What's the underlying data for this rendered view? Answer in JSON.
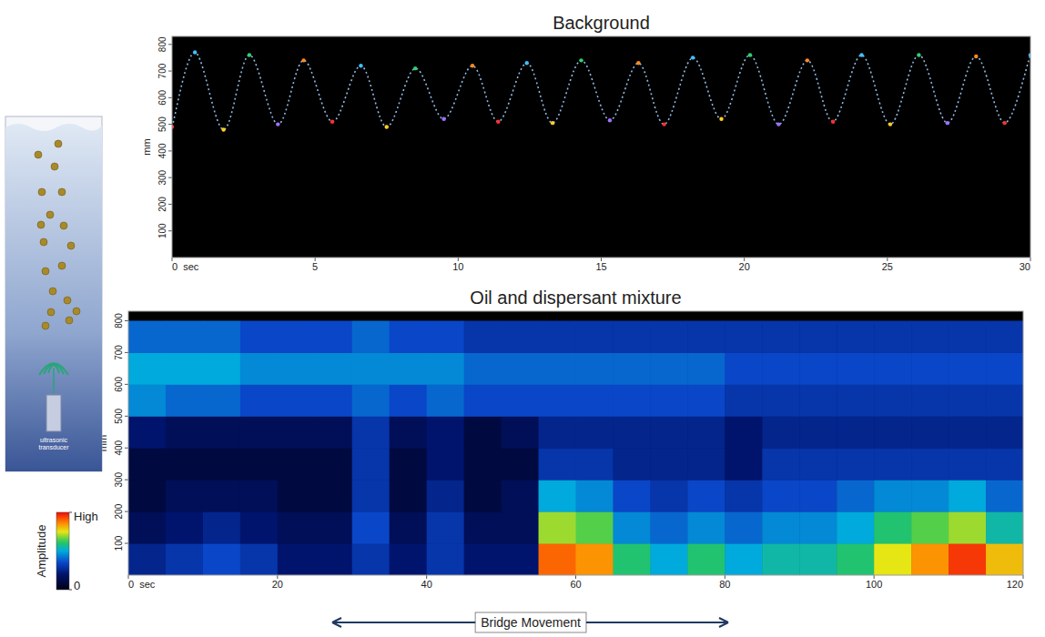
{
  "chart_data": [
    {
      "type": "line",
      "title": "Background",
      "x": [
        0,
        0.8,
        1.8,
        2.7,
        3.7,
        4.6,
        5.6,
        6.6,
        7.5,
        8.5,
        9.5,
        10.5,
        11.4,
        12.4,
        13.3,
        14.3,
        15.3,
        16.3,
        17.2,
        18.2,
        19.2,
        20.2,
        21.2,
        22.2,
        23.1,
        24.1,
        25.1,
        26.1,
        27.1,
        28.1,
        29.1,
        30
      ],
      "values": [
        490,
        770,
        480,
        760,
        500,
        740,
        510,
        720,
        490,
        710,
        520,
        720,
        510,
        730,
        505,
        740,
        515,
        730,
        500,
        750,
        520,
        760,
        500,
        740,
        510,
        760,
        500,
        760,
        505,
        755,
        505,
        760
      ],
      "color": "#8fb8e0",
      "marker": "dot",
      "xlim": [
        0,
        30
      ],
      "xticks": [
        0,
        5,
        10,
        15,
        20,
        25,
        30
      ],
      "ylim": [
        0,
        830
      ],
      "yticks": [
        100,
        200,
        300,
        400,
        500,
        600,
        700,
        800
      ],
      "xlabel": "sec",
      "ylabel": "mm"
    },
    {
      "type": "heatmap",
      "title": "Oil and dispersant mixture",
      "x_edges": [
        0,
        5,
        10,
        15,
        20,
        25,
        30,
        35,
        40,
        45,
        50,
        55,
        60,
        65,
        70,
        75,
        80,
        85,
        90,
        95,
        100,
        105,
        110,
        115,
        120
      ],
      "y_edges": [
        0,
        100,
        200,
        300,
        400,
        500,
        600,
        700,
        800
      ],
      "cells": [
        [
          0.25,
          0.3,
          0.35,
          0.3,
          0.2,
          0.2,
          0.3,
          0.2,
          0.3,
          0.2,
          0.2,
          0.9,
          0.85,
          0.6,
          0.5,
          0.6,
          0.5,
          0.55,
          0.55,
          0.6,
          0.75,
          0.85,
          0.95,
          0.8
        ],
        [
          0.15,
          0.2,
          0.25,
          0.2,
          0.15,
          0.15,
          0.35,
          0.15,
          0.3,
          0.15,
          0.15,
          0.7,
          0.65,
          0.45,
          0.4,
          0.45,
          0.4,
          0.45,
          0.45,
          0.5,
          0.6,
          0.65,
          0.7,
          0.55
        ],
        [
          0.1,
          0.15,
          0.15,
          0.15,
          0.1,
          0.1,
          0.3,
          0.1,
          0.25,
          0.1,
          0.15,
          0.5,
          0.45,
          0.35,
          0.3,
          0.35,
          0.3,
          0.35,
          0.35,
          0.4,
          0.45,
          0.45,
          0.5,
          0.4
        ],
        [
          0.1,
          0.1,
          0.1,
          0.1,
          0.1,
          0.1,
          0.3,
          0.1,
          0.2,
          0.1,
          0.1,
          0.3,
          0.3,
          0.25,
          0.25,
          0.25,
          0.2,
          0.3,
          0.3,
          0.3,
          0.3,
          0.3,
          0.3,
          0.3
        ],
        [
          0.2,
          0.15,
          0.15,
          0.15,
          0.15,
          0.15,
          0.3,
          0.15,
          0.2,
          0.1,
          0.15,
          0.25,
          0.25,
          0.25,
          0.25,
          0.25,
          0.2,
          0.25,
          0.25,
          0.25,
          0.25,
          0.25,
          0.25,
          0.25
        ],
        [
          0.45,
          0.4,
          0.4,
          0.35,
          0.35,
          0.35,
          0.4,
          0.35,
          0.4,
          0.35,
          0.35,
          0.35,
          0.35,
          0.35,
          0.35,
          0.35,
          0.3,
          0.3,
          0.3,
          0.3,
          0.3,
          0.3,
          0.3,
          0.3
        ],
        [
          0.5,
          0.5,
          0.5,
          0.45,
          0.45,
          0.45,
          0.45,
          0.45,
          0.45,
          0.4,
          0.4,
          0.4,
          0.4,
          0.4,
          0.4,
          0.4,
          0.35,
          0.35,
          0.35,
          0.35,
          0.35,
          0.35,
          0.35,
          0.35
        ],
        [
          0.4,
          0.4,
          0.4,
          0.35,
          0.35,
          0.35,
          0.4,
          0.35,
          0.35,
          0.3,
          0.3,
          0.3,
          0.3,
          0.3,
          0.3,
          0.3,
          0.3,
          0.3,
          0.3,
          0.3,
          0.3,
          0.3,
          0.3,
          0.3
        ]
      ],
      "colorbar": {
        "label": "Amplitude",
        "range": [
          0,
          1
        ],
        "ticks": [
          0,
          {
            "value": 1,
            "label": "High"
          }
        ]
      },
      "xlim": [
        0,
        120
      ],
      "xticks": [
        0,
        20,
        40,
        60,
        80,
        100,
        120
      ],
      "ylim": [
        0,
        830
      ],
      "yticks": [
        100,
        200,
        300,
        400,
        500,
        600,
        700,
        800
      ],
      "xlabel": "sec",
      "ylabel": "mm",
      "annotation": "Bridge Movement"
    }
  ],
  "diagram": {
    "transducer_label": "ultrasonic transducer"
  }
}
